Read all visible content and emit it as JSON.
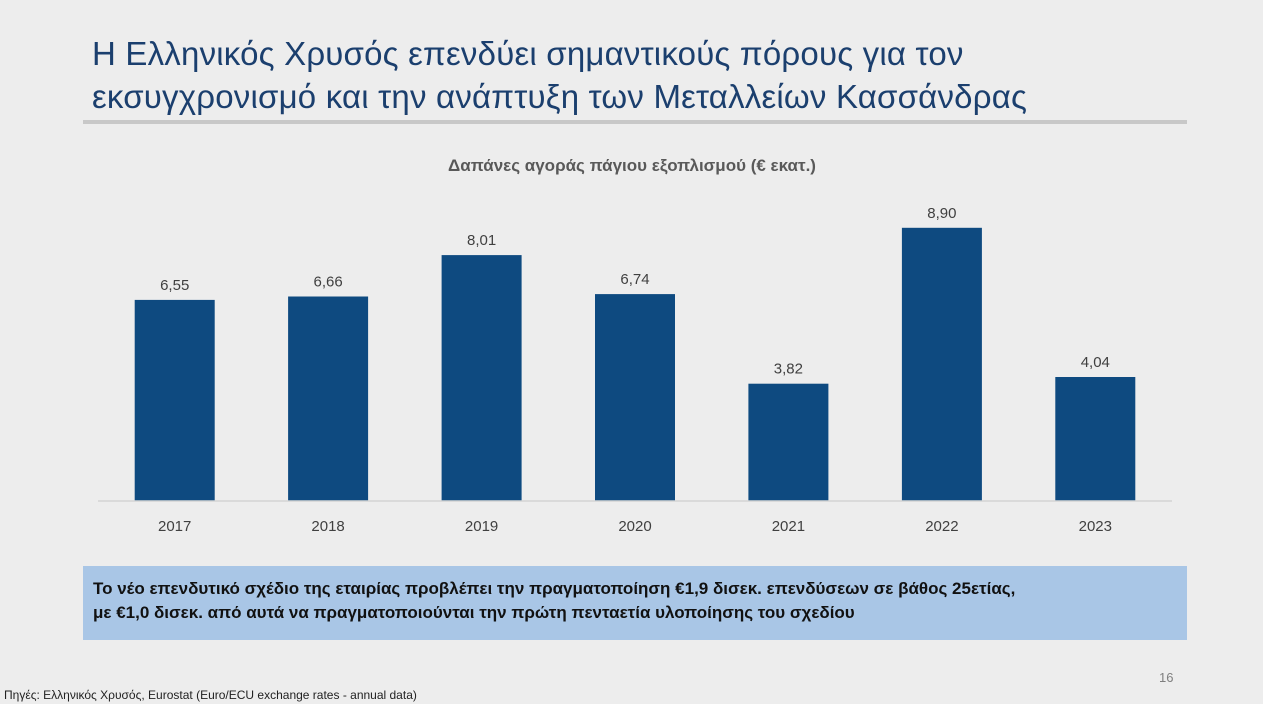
{
  "slide": {
    "title_line1": "Η Ελληνικός Χρυσός επενδύει σημαντικούς πόρους για τον",
    "title_line2": "εκσυγχρονισμό και την ανάπτυξη των Μεταλλείων Κασσάνδρας",
    "callout_line1": "Το νέο επενδυτικό σχέδιο της εταιρίας προβλέπει την πραγματοποίηση €1,9 δισεκ. επενδύσεων σε βάθος 25ετίας,",
    "callout_line2": "με €1,0 δισεκ. από αυτά να πραγματοποιούνται την πρώτη πενταετία υλοποίησης του σχεδίου",
    "page_number": "16",
    "source": "Πηγές: Ελληνικός Χρυσός, Eurostat (Euro/ECU exchange rates - annual data)"
  },
  "colors": {
    "bar": "#0e4a80",
    "title": "#1b3f6e",
    "callout_bg": "#a9c6e6",
    "background": "#ededed"
  },
  "chart_data": {
    "type": "bar",
    "title": "Δαπάνες αγοράς πάγιου εξοπλισμού (€ εκατ.)",
    "categories": [
      "2017",
      "2018",
      "2019",
      "2020",
      "2021",
      "2022",
      "2023"
    ],
    "values": [
      6.55,
      6.66,
      8.01,
      6.74,
      3.82,
      8.9,
      4.04
    ],
    "data_labels": [
      "6,55",
      "6,66",
      "8,01",
      "6,74",
      "3,82",
      "8,90",
      "4,04"
    ],
    "xlabel": "",
    "ylabel": "",
    "ylim": [
      0,
      10
    ],
    "grid": false,
    "legend": "none",
    "y_axis_visible": false
  }
}
